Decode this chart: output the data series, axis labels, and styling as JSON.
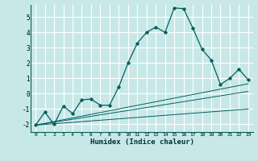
{
  "xlabel": "Humidex (Indice chaleur)",
  "bg_color": "#c8e8e8",
  "grid_color": "#b0d8d8",
  "line_color": "#006060",
  "xlim": [
    -0.5,
    23.5
  ],
  "ylim": [
    -2.5,
    5.8
  ],
  "xticks": [
    0,
    1,
    2,
    3,
    4,
    5,
    6,
    7,
    8,
    9,
    10,
    11,
    12,
    13,
    14,
    15,
    16,
    17,
    18,
    19,
    20,
    21,
    22,
    23
  ],
  "yticks": [
    -2,
    -1,
    0,
    1,
    2,
    3,
    4,
    5
  ],
  "main_x": [
    0,
    1,
    2,
    3,
    4,
    5,
    6,
    7,
    8,
    9,
    10,
    11,
    12,
    13,
    14,
    15,
    16,
    17,
    18,
    19,
    20,
    21,
    22,
    23
  ],
  "main_y": [
    -2.05,
    -1.2,
    -2.0,
    -0.8,
    -1.3,
    -0.4,
    -0.35,
    -0.75,
    -0.75,
    0.45,
    2.0,
    3.3,
    4.0,
    4.35,
    4.0,
    5.6,
    5.55,
    4.3,
    2.9,
    2.2,
    0.6,
    1.0,
    1.6,
    0.9
  ],
  "line1_x": [
    0,
    23
  ],
  "line1_y": [
    -2.05,
    0.65
  ],
  "line2_x": [
    0,
    23
  ],
  "line2_y": [
    -2.05,
    -1.0
  ],
  "line3_x": [
    0,
    23
  ],
  "line3_y": [
    -2.05,
    0.15
  ]
}
